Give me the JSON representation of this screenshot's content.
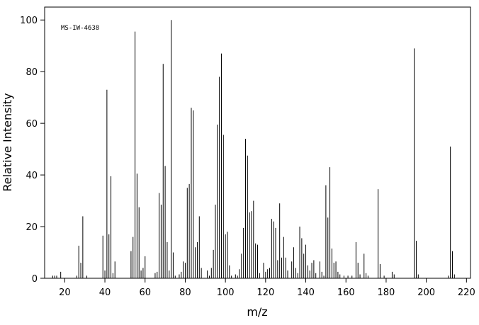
{
  "chart_data": {
    "type": "stem",
    "annotation": "MS-IW-4638",
    "xlabel": "m/z",
    "ylabel": "Relative Intensity",
    "color": "#000000",
    "x": [
      14,
      15,
      16,
      18,
      26,
      27,
      28,
      29,
      31,
      39,
      40,
      41,
      42,
      43,
      44,
      45,
      53,
      54,
      55,
      56,
      57,
      58,
      59,
      60,
      65,
      66,
      67,
      68,
      69,
      70,
      71,
      72,
      73,
      74,
      75,
      77,
      78,
      79,
      80,
      81,
      82,
      83,
      84,
      85,
      86,
      87,
      88,
      91,
      92,
      93,
      94,
      95,
      96,
      97,
      98,
      99,
      100,
      101,
      102,
      103,
      105,
      106,
      107,
      108,
      109,
      110,
      111,
      112,
      113,
      114,
      115,
      116,
      117,
      119,
      120,
      121,
      122,
      123,
      124,
      125,
      126,
      127,
      128,
      129,
      130,
      131,
      133,
      134,
      135,
      136,
      137,
      138,
      139,
      140,
      141,
      142,
      143,
      144,
      145,
      147,
      148,
      149,
      150,
      151,
      152,
      153,
      154,
      155,
      156,
      157,
      159,
      161,
      163,
      165,
      166,
      167,
      169,
      170,
      171,
      176,
      177,
      179,
      183,
      184,
      194,
      195,
      196,
      211,
      212,
      213,
      214
    ],
    "values": [
      1,
      1,
      1,
      2.5,
      1,
      12.6,
      6,
      24,
      1,
      16.5,
      3,
      73,
      17,
      39.5,
      2,
      6.5,
      10.5,
      16,
      95.5,
      40.5,
      27.5,
      3,
      4,
      8.5,
      2,
      2.5,
      33,
      28.5,
      83,
      43.5,
      14,
      3,
      100,
      10,
      1,
      1.5,
      2.5,
      6.5,
      6,
      35,
      36.5,
      66,
      65,
      12,
      14,
      24,
      4,
      3,
      1,
      4,
      11,
      28.5,
      59.5,
      78,
      87,
      55.5,
      17,
      18,
      5,
      1,
      1.5,
      1,
      3.5,
      9.5,
      19.5,
      54,
      47.5,
      25.5,
      26,
      30,
      13.5,
      13,
      2,
      6,
      2.5,
      3.5,
      4,
      23,
      22,
      19.5,
      7,
      29,
      8,
      16,
      8,
      3,
      6.5,
      12,
      4,
      2,
      20,
      15.5,
      9.5,
      13,
      5,
      3,
      6,
      7,
      2,
      6.5,
      2.5,
      1,
      36,
      23.5,
      43,
      11.5,
      6,
      6.5,
      2.5,
      1.5,
      1,
      1,
      1,
      14,
      6,
      1.5,
      9.5,
      2,
      1,
      34.5,
      5.5,
      1,
      2.5,
      1.5,
      89,
      14.5,
      1.5,
      1,
      51,
      10.5,
      1.5
    ],
    "xlim": [
      10,
      222
    ],
    "ylim": [
      0,
      105
    ],
    "xticks": [
      20,
      40,
      60,
      80,
      100,
      120,
      140,
      160,
      180,
      200,
      220
    ],
    "yticks": [
      0,
      20,
      40,
      60,
      80,
      100
    ]
  }
}
